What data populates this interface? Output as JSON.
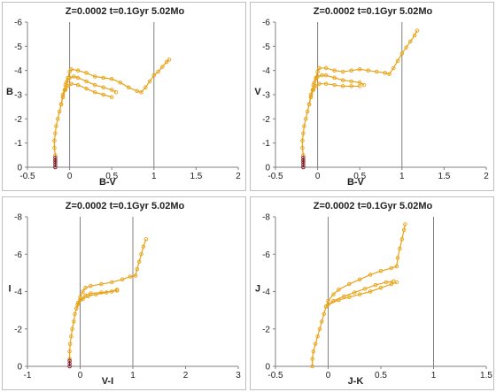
{
  "chart_data": [
    {
      "type": "scatter",
      "title": "Z=0.0002  t=0.1Gyr  5.02Mo",
      "xlabel": "B-V",
      "ylabel": "B",
      "xlim": [
        -0.5,
        2
      ],
      "ylim": [
        0,
        -6
      ],
      "xticks": [
        "-0.5",
        "0",
        "0.5",
        "1",
        "1.5",
        "2"
      ],
      "yticks": [
        "0",
        "-1",
        "-2",
        "-3",
        "-4",
        "-5",
        "-6"
      ],
      "grid": false,
      "series": [
        {
          "color": "#e8a317",
          "points": [
            [
              -0.17,
              0.0
            ],
            [
              -0.17,
              -0.25
            ],
            [
              -0.17,
              -0.5
            ],
            [
              -0.18,
              -0.8
            ],
            [
              -0.18,
              -1.1
            ],
            [
              -0.17,
              -1.4
            ],
            [
              -0.16,
              -1.7
            ],
            [
              -0.14,
              -2.0
            ],
            [
              -0.12,
              -2.3
            ],
            [
              -0.1,
              -2.6
            ],
            [
              -0.08,
              -2.9
            ],
            [
              -0.06,
              -3.2
            ],
            [
              -0.04,
              -3.5
            ],
            [
              -0.02,
              -3.7
            ],
            [
              0.0,
              -3.95
            ],
            [
              0.02,
              -4.05
            ],
            [
              0.1,
              -4.0
            ],
            [
              0.2,
              -3.9
            ],
            [
              0.3,
              -3.75
            ],
            [
              0.4,
              -3.7
            ],
            [
              0.5,
              -3.65
            ],
            [
              0.6,
              -3.5
            ],
            [
              0.7,
              -3.3
            ],
            [
              0.8,
              -3.15
            ],
            [
              0.85,
              -3.1
            ],
            [
              0.9,
              -3.3
            ],
            [
              0.95,
              -3.55
            ],
            [
              1.0,
              -3.8
            ],
            [
              1.05,
              -3.95
            ],
            [
              1.1,
              -4.15
            ],
            [
              1.15,
              -4.35
            ],
            [
              1.18,
              -4.45
            ]
          ]
        },
        {
          "color": "#e8a317",
          "points": [
            [
              -0.1,
              -2.6
            ],
            [
              -0.08,
              -3.0
            ],
            [
              -0.05,
              -3.4
            ],
            [
              -0.02,
              -3.6
            ],
            [
              0.0,
              -3.7
            ],
            [
              0.05,
              -3.75
            ],
            [
              0.1,
              -3.7
            ],
            [
              0.2,
              -3.55
            ],
            [
              0.3,
              -3.4
            ],
            [
              0.4,
              -3.3
            ],
            [
              0.5,
              -3.2
            ],
            [
              0.55,
              -3.1
            ]
          ]
        },
        {
          "color": "#e8a317",
          "points": [
            [
              -0.08,
              -2.9
            ],
            [
              -0.05,
              -3.2
            ],
            [
              -0.02,
              -3.35
            ],
            [
              0.02,
              -3.45
            ],
            [
              0.1,
              -3.4
            ],
            [
              0.2,
              -3.25
            ],
            [
              0.3,
              -3.1
            ],
            [
              0.4,
              -3.0
            ],
            [
              0.5,
              -2.9
            ]
          ]
        },
        {
          "color": "#7b1e3a",
          "points": [
            [
              -0.17,
              0.0
            ],
            [
              -0.17,
              -0.1
            ],
            [
              -0.17,
              -0.2
            ],
            [
              -0.17,
              -0.3
            ],
            [
              -0.17,
              -0.4
            ]
          ]
        }
      ]
    },
    {
      "type": "scatter",
      "title": "Z=0.0002  t=0.1Gyr  5.02Mo",
      "xlabel": "B-V",
      "ylabel": "V",
      "xlim": [
        -0.5,
        2
      ],
      "ylim": [
        0,
        -6
      ],
      "xticks": [
        "-0.5",
        "0",
        "0.5",
        "1",
        "1.5",
        "2"
      ],
      "yticks": [
        "0",
        "-1",
        "-2",
        "-3",
        "-4",
        "-5",
        "-6"
      ],
      "grid": false,
      "series": [
        {
          "color": "#e8a317",
          "points": [
            [
              -0.17,
              0.0
            ],
            [
              -0.17,
              -0.25
            ],
            [
              -0.17,
              -0.5
            ],
            [
              -0.18,
              -0.8
            ],
            [
              -0.18,
              -1.1
            ],
            [
              -0.17,
              -1.4
            ],
            [
              -0.16,
              -1.7
            ],
            [
              -0.14,
              -2.0
            ],
            [
              -0.12,
              -2.3
            ],
            [
              -0.1,
              -2.6
            ],
            [
              -0.08,
              -2.9
            ],
            [
              -0.06,
              -3.2
            ],
            [
              -0.04,
              -3.5
            ],
            [
              -0.02,
              -3.7
            ],
            [
              0.0,
              -3.95
            ],
            [
              0.02,
              -4.1
            ],
            [
              0.1,
              -4.1
            ],
            [
              0.2,
              -4.0
            ],
            [
              0.3,
              -3.95
            ],
            [
              0.4,
              -4.0
            ],
            [
              0.5,
              -4.05
            ],
            [
              0.6,
              -4.0
            ],
            [
              0.7,
              -3.95
            ],
            [
              0.8,
              -3.9
            ],
            [
              0.85,
              -3.85
            ],
            [
              0.9,
              -4.1
            ],
            [
              0.95,
              -4.4
            ],
            [
              1.0,
              -4.7
            ],
            [
              1.05,
              -4.95
            ],
            [
              1.1,
              -5.2
            ],
            [
              1.15,
              -5.45
            ],
            [
              1.18,
              -5.65
            ]
          ]
        },
        {
          "color": "#e8a317",
          "points": [
            [
              -0.1,
              -2.6
            ],
            [
              -0.08,
              -3.0
            ],
            [
              -0.05,
              -3.4
            ],
            [
              -0.02,
              -3.65
            ],
            [
              0.0,
              -3.75
            ],
            [
              0.05,
              -3.8
            ],
            [
              0.1,
              -3.8
            ],
            [
              0.2,
              -3.7
            ],
            [
              0.3,
              -3.6
            ],
            [
              0.4,
              -3.55
            ],
            [
              0.5,
              -3.5
            ],
            [
              0.55,
              -3.4
            ]
          ]
        },
        {
          "color": "#e8a317",
          "points": [
            [
              -0.08,
              -2.9
            ],
            [
              -0.05,
              -3.2
            ],
            [
              -0.02,
              -3.35
            ],
            [
              0.02,
              -3.45
            ],
            [
              0.1,
              -3.45
            ],
            [
              0.2,
              -3.4
            ],
            [
              0.3,
              -3.35
            ],
            [
              0.4,
              -3.35
            ],
            [
              0.5,
              -3.35
            ]
          ]
        },
        {
          "color": "#7b1e3a",
          "points": [
            [
              -0.17,
              0.0
            ],
            [
              -0.17,
              -0.1
            ],
            [
              -0.17,
              -0.2
            ],
            [
              -0.17,
              -0.3
            ],
            [
              -0.17,
              -0.4
            ]
          ]
        }
      ]
    },
    {
      "type": "scatter",
      "title": "Z=0.0002  t=0.1Gyr  5.02Mo",
      "xlabel": "V-I",
      "ylabel": "I",
      "xlim": [
        -1,
        3
      ],
      "ylim": [
        0,
        -8
      ],
      "xticks": [
        "-1",
        "0",
        "1",
        "2",
        "3"
      ],
      "yticks": [
        "0",
        "-2",
        "-4",
        "-6",
        "-8"
      ],
      "grid": false,
      "series": [
        {
          "color": "#e8a317",
          "points": [
            [
              -0.2,
              0.0
            ],
            [
              -0.2,
              -0.4
            ],
            [
              -0.2,
              -0.8
            ],
            [
              -0.19,
              -1.2
            ],
            [
              -0.17,
              -1.6
            ],
            [
              -0.15,
              -2.0
            ],
            [
              -0.12,
              -2.4
            ],
            [
              -0.1,
              -2.8
            ],
            [
              -0.07,
              -3.1
            ],
            [
              -0.04,
              -3.4
            ],
            [
              0.0,
              -3.7
            ],
            [
              0.05,
              -4.0
            ],
            [
              0.1,
              -4.2
            ],
            [
              0.2,
              -4.3
            ],
            [
              0.4,
              -4.4
            ],
            [
              0.6,
              -4.5
            ],
            [
              0.8,
              -4.65
            ],
            [
              0.95,
              -4.8
            ],
            [
              1.05,
              -4.85
            ],
            [
              1.08,
              -5.2
            ],
            [
              1.12,
              -5.6
            ],
            [
              1.16,
              -6.0
            ],
            [
              1.2,
              -6.4
            ],
            [
              1.25,
              -6.8
            ]
          ]
        },
        {
          "color": "#e8a317",
          "points": [
            [
              -0.07,
              -3.1
            ],
            [
              0.0,
              -3.55
            ],
            [
              0.1,
              -3.8
            ],
            [
              0.2,
              -3.9
            ],
            [
              0.4,
              -3.95
            ],
            [
              0.6,
              -4.0
            ],
            [
              0.7,
              -4.05
            ]
          ]
        },
        {
          "color": "#e8a317",
          "points": [
            [
              -0.05,
              -3.3
            ],
            [
              0.05,
              -3.6
            ],
            [
              0.15,
              -3.75
            ],
            [
              0.3,
              -3.85
            ],
            [
              0.5,
              -3.95
            ],
            [
              0.7,
              -4.1
            ]
          ]
        },
        {
          "color": "#7b1e3a",
          "points": [
            [
              -0.2,
              0.0
            ],
            [
              -0.2,
              -0.15
            ],
            [
              -0.2,
              -0.3
            ]
          ]
        }
      ]
    },
    {
      "type": "scatter",
      "title": "Z=0.0002  t=0.1Gyr  5.02Mo",
      "xlabel": "J-K",
      "ylabel": "J",
      "xlim": [
        -0.5,
        1.5
      ],
      "ylim": [
        0,
        -8
      ],
      "xticks": [
        "-0.5",
        "0",
        "0.5",
        "1",
        "1.5"
      ],
      "yticks": [
        "0",
        "-2",
        "-4",
        "-6",
        "-8"
      ],
      "grid": false,
      "series": [
        {
          "color": "#e8a317",
          "points": [
            [
              -0.15,
              0.0
            ],
            [
              -0.15,
              -0.4
            ],
            [
              -0.14,
              -0.8
            ],
            [
              -0.12,
              -1.2
            ],
            [
              -0.1,
              -1.6
            ],
            [
              -0.08,
              -2.0
            ],
            [
              -0.06,
              -2.4
            ],
            [
              -0.04,
              -2.8
            ],
            [
              -0.02,
              -3.2
            ],
            [
              0.0,
              -3.5
            ],
            [
              0.05,
              -3.85
            ],
            [
              0.1,
              -4.1
            ],
            [
              0.2,
              -4.4
            ],
            [
              0.3,
              -4.65
            ],
            [
              0.4,
              -4.9
            ],
            [
              0.5,
              -5.1
            ],
            [
              0.6,
              -5.25
            ],
            [
              0.65,
              -5.35
            ],
            [
              0.66,
              -5.8
            ],
            [
              0.68,
              -6.3
            ],
            [
              0.7,
              -6.8
            ],
            [
              0.72,
              -7.3
            ],
            [
              0.73,
              -7.6
            ]
          ]
        },
        {
          "color": "#e8a317",
          "points": [
            [
              -0.02,
              -3.2
            ],
            [
              0.05,
              -3.5
            ],
            [
              0.15,
              -3.75
            ],
            [
              0.25,
              -3.95
            ],
            [
              0.35,
              -4.15
            ],
            [
              0.45,
              -4.35
            ],
            [
              0.55,
              -4.5
            ],
            [
              0.62,
              -4.55
            ]
          ]
        },
        {
          "color": "#e8a317",
          "points": [
            [
              0.0,
              -3.3
            ],
            [
              0.1,
              -3.55
            ],
            [
              0.2,
              -3.7
            ],
            [
              0.3,
              -3.85
            ],
            [
              0.4,
              -4.0
            ],
            [
              0.5,
              -4.2
            ],
            [
              0.6,
              -4.4
            ],
            [
              0.65,
              -4.5
            ]
          ]
        }
      ]
    }
  ]
}
